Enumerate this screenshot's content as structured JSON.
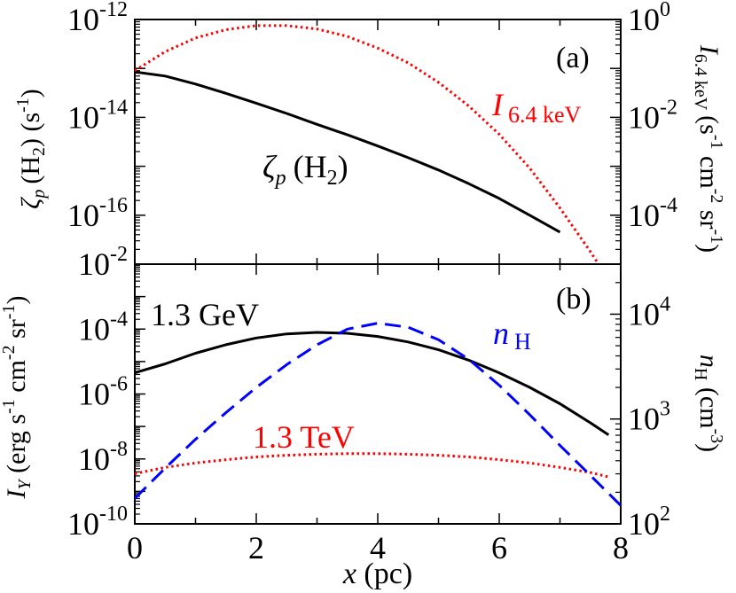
{
  "chart_data": [
    {
      "panel_label": "(a)",
      "type": "line",
      "xlim": [
        0,
        8
      ],
      "x_ticks": [
        "0",
        "2",
        "4",
        "6",
        "8"
      ],
      "left_axis": {
        "label": "ζp (H2) (s-1)",
        "label_main": "ζ",
        "label_sub": "p",
        "label_rest": "(H",
        "label_rest_sub": "2",
        "label_rest_end": ") (s",
        "label_unit_sup": "-1",
        "label_close": ")",
        "scale": "log",
        "ylim": [
          1e-17,
          1e-12
        ],
        "ticks": [
          {
            "value": 1e-12,
            "base": "10",
            "exp": "-12"
          },
          {
            "value": 1e-14,
            "base": "10",
            "exp": "-14"
          },
          {
            "value": 1e-16,
            "base": "10",
            "exp": "-16"
          }
        ]
      },
      "right_axis": {
        "label_main": "I",
        "label_sub": "6.4 keV",
        "label_open": "(s",
        "label_sup1": "-1",
        "label_mid1": " cm",
        "label_sup2": "-2",
        "label_mid2": " sr",
        "label_sup3": "-1",
        "label_close": ")",
        "scale": "log",
        "ylim": [
          1e-05,
          1
        ],
        "ticks": [
          {
            "value": 1,
            "base": "10",
            "exp": "0"
          },
          {
            "value": 0.01,
            "base": "10",
            "exp": "-2"
          },
          {
            "value": 0.0001,
            "base": "10",
            "exp": "-4"
          }
        ]
      },
      "series": [
        {
          "name": "ζp (H2)",
          "label_main": "ζ",
          "label_sub": "p",
          "label_rest": "(H",
          "label_rest_sub": "2",
          "label_close": ")",
          "axis": "left",
          "style": "solid",
          "color": "#000000",
          "x": [
            0,
            0.5,
            1,
            1.5,
            2,
            2.5,
            3,
            3.5,
            4,
            4.5,
            5,
            5.5,
            6,
            6.5,
            7
          ],
          "y": [
            8.5e-14,
            7e-14,
            4.8e-14,
            3.1e-14,
            1.95e-14,
            1.2e-14,
            7.2e-15,
            4.4e-15,
            2.6e-15,
            1.5e-15,
            8.4e-16,
            4.4e-16,
            2.2e-16,
            1e-16,
            4.5e-17
          ]
        },
        {
          "name": "I 6.4 keV",
          "label_main": "I",
          "label_sub": "6.4 keV",
          "axis": "right",
          "style": "dotted",
          "color": "#ff0000",
          "x": [
            0,
            0.5,
            1,
            1.5,
            2,
            2.5,
            3,
            3.5,
            4,
            4.5,
            5,
            5.5,
            6,
            6.5,
            7,
            7.5,
            7.75
          ],
          "y": [
            0.09,
            0.22,
            0.42,
            0.62,
            0.75,
            0.75,
            0.64,
            0.45,
            0.26,
            0.13,
            0.052,
            0.017,
            0.0045,
            0.00092,
            0.00014,
            1.8e-05,
            6e-06
          ]
        }
      ]
    },
    {
      "panel_label": "(b)",
      "type": "line",
      "xlim": [
        0,
        8
      ],
      "x_ticks": [
        "0",
        "2",
        "4",
        "6",
        "8"
      ],
      "xlabel_main": "x",
      "xlabel_rest": " (pc)",
      "left_axis": {
        "label_main": "I",
        "label_sub": "Y",
        "label_open": " (erg s",
        "label_sup1": "-1",
        "label_mid1": " cm",
        "label_sup2": "-2",
        "label_mid2": " sr",
        "label_sup3": "-1",
        "label_close": ")",
        "scale": "log",
        "ylim": [
          1e-10,
          0.01
        ],
        "ticks": [
          {
            "value": 0.01,
            "base": "10",
            "exp": "-2"
          },
          {
            "value": 0.0001,
            "base": "10",
            "exp": "-4"
          },
          {
            "value": 1e-06,
            "base": "10",
            "exp": "-6"
          },
          {
            "value": 1e-08,
            "base": "10",
            "exp": "-8"
          },
          {
            "value": 1e-10,
            "base": "10",
            "exp": "-10"
          }
        ]
      },
      "right_axis": {
        "label_main": "n",
        "label_sub": "H",
        "label_open": " (cm",
        "label_sup": "-3",
        "label_close": ")",
        "scale": "log",
        "ylim": [
          100,
          30000
        ],
        "ticks": [
          {
            "value": 100,
            "base": "10",
            "exp": "2"
          },
          {
            "value": 1000,
            "base": "10",
            "exp": "3"
          },
          {
            "value": 10000,
            "base": "10",
            "exp": "4"
          }
        ]
      },
      "series": [
        {
          "name": "1.3 GeV",
          "axis": "left",
          "style": "solid",
          "color": "#000000",
          "x": [
            0,
            0.5,
            1,
            1.5,
            2,
            2.5,
            3,
            3.5,
            4,
            4.5,
            5,
            5.5,
            6,
            6.5,
            7,
            7.5,
            7.8
          ],
          "y": [
            4.5e-06,
            8.5e-06,
            1.8e-05,
            3.3e-05,
            5.3e-05,
            7.1e-05,
            7.9e-05,
            7.4e-05,
            5.9e-05,
            4e-05,
            2.3e-05,
            1.1e-05,
            4.5e-06,
            1.6e-06,
            5e-07,
            1.3e-07,
            5.5e-08
          ]
        },
        {
          "name": "1.3 TeV",
          "axis": "left",
          "style": "dotted",
          "color": "#ff0000",
          "x": [
            0,
            0.5,
            1,
            1.5,
            2,
            2.5,
            3,
            3.5,
            4,
            4.5,
            5,
            5.5,
            6,
            6.5,
            7,
            7.5,
            7.8
          ],
          "y": [
            3.5e-09,
            5.5e-09,
            7.5e-09,
            9.5e-09,
            1.15e-08,
            1.3e-08,
            1.4e-08,
            1.45e-08,
            1.45e-08,
            1.4e-08,
            1.3e-08,
            1.15e-08,
            9.5e-09,
            7.5e-09,
            5.5e-09,
            3.8e-09,
            2.8e-09
          ]
        },
        {
          "name": "n H",
          "label_main": "n",
          "label_sub": "H",
          "axis": "right",
          "style": "dashed",
          "color": "#0000ff",
          "x": [
            0,
            0.5,
            1,
            1.5,
            2,
            2.5,
            3,
            3.5,
            4,
            4.5,
            5,
            5.5,
            6,
            6.5,
            7,
            7.5,
            8
          ],
          "y": [
            175,
            340,
            640,
            1150,
            2000,
            3300,
            5100,
            7200,
            8200,
            7500,
            5700,
            3700,
            2100,
            1100,
            560,
            290,
            150
          ]
        }
      ]
    }
  ]
}
